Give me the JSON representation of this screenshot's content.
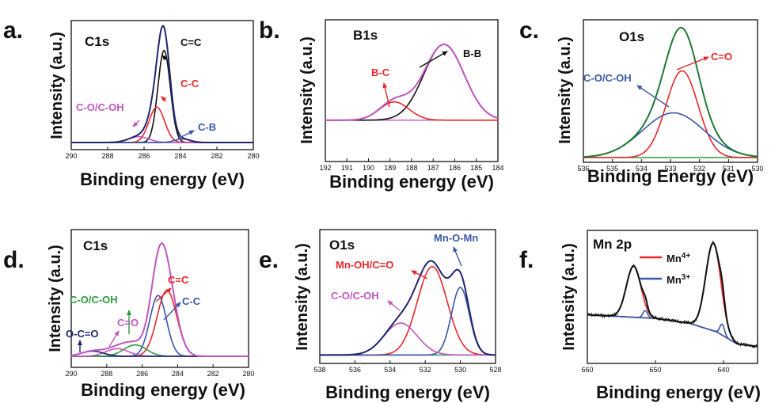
{
  "colors": {
    "black": "#111111",
    "red": "#e8272a",
    "blue": "#3a57a8",
    "magenta": "#c056c0",
    "green": "#2e9a3c",
    "navy": "#22246e",
    "darkgreen": "#1f7a33"
  },
  "chart_data": [
    {
      "id": "a",
      "type": "line",
      "letter": "a.",
      "title": "C1s",
      "xlabel": "Binding energy (eV)",
      "ylabel": "Intensity (a.u.)",
      "xlim": [
        290,
        280
      ],
      "ylim": [
        0,
        1.0
      ],
      "xticks": [
        "290",
        "288",
        "286",
        "284",
        "282",
        "280"
      ],
      "baseline": 0.02,
      "peaks": [
        {
          "name": "C=C",
          "color": "#111111",
          "center": 284.9,
          "height": 0.78,
          "fwhm": 0.8
        },
        {
          "name": "C-C",
          "color": "#e8272a",
          "center": 285.3,
          "height": 0.3,
          "fwhm": 1.0
        },
        {
          "name": "C-O/C-OH",
          "color": "#c056c0",
          "center": 286.3,
          "height": 0.05,
          "fwhm": 1.3
        },
        {
          "name": "C-B",
          "color": "#3a57a8",
          "center": 283.9,
          "height": 0.03,
          "fwhm": 1.0
        }
      ],
      "envelope_color": "#22246e",
      "annotations": [
        {
          "text": "C=C",
          "color": "#111111"
        },
        {
          "text": "C-C",
          "color": "#e8272a"
        },
        {
          "text": "C-O/C-OH",
          "color": "#c056c0"
        },
        {
          "text": "C-B",
          "color": "#3a57a8"
        }
      ]
    },
    {
      "id": "b",
      "type": "line",
      "letter": "b.",
      "title": "B1s",
      "xlabel": "Binding energy (eV)",
      "ylabel": "Intensity (a.u.)",
      "xlim": [
        192,
        184
      ],
      "ylim": [
        0,
        1.0
      ],
      "xticks": [
        "192",
        "191",
        "190",
        "189",
        "188",
        "187",
        "186",
        "185",
        "184"
      ],
      "baseline": 0.28,
      "peaks": [
        {
          "name": "B-B",
          "color": "#111111",
          "center": 186.5,
          "height": 0.58,
          "fwhm": 2.2
        },
        {
          "name": "B-C",
          "color": "#e8272a",
          "center": 188.8,
          "height": 0.14,
          "fwhm": 1.6
        }
      ],
      "envelope_color": "#c056c0",
      "annotations": [
        {
          "text": "B-B",
          "color": "#111111"
        },
        {
          "text": "B-C",
          "color": "#e8272a"
        }
      ]
    },
    {
      "id": "c",
      "type": "line",
      "letter": "c.",
      "title": "O1s",
      "xlabel": "Binding Energy (eV)",
      "ylabel": "Intensity (a.u.)",
      "xlim": [
        536,
        530
      ],
      "ylim": [
        0,
        1.0
      ],
      "xticks": [
        "536",
        "535",
        "534",
        "533",
        "532",
        "531",
        "530"
      ],
      "baseline": 0.0,
      "peaks": [
        {
          "name": "C=O",
          "color": "#e8272a",
          "center": 532.6,
          "height": 0.66,
          "fwhm": 1.3
        },
        {
          "name": "C-O/C-OH",
          "color": "#3a57a8",
          "center": 532.9,
          "height": 0.34,
          "fwhm": 2.5
        }
      ],
      "envelope_color": "#1f7a33",
      "annotations": [
        {
          "text": "C=O",
          "color": "#e8272a"
        },
        {
          "text": "C-O/C-OH",
          "color": "#3a57a8"
        }
      ]
    },
    {
      "id": "d",
      "type": "line",
      "letter": "d.",
      "title": "C1s",
      "xlabel": "Binding energy (eV)",
      "ylabel": "Intensity (a.u.)",
      "xlim": [
        290,
        280
      ],
      "ylim": [
        0,
        1.0
      ],
      "xticks": [
        "290",
        "288",
        "286",
        "284",
        "282",
        "280"
      ],
      "baseline": 0.05,
      "peaks": [
        {
          "name": "C=C",
          "color": "#e8272a",
          "center": 284.6,
          "height": 0.52,
          "fwhm": 1.3
        },
        {
          "name": "C-C",
          "color": "#3a57a8",
          "center": 285.1,
          "height": 0.48,
          "fwhm": 1.1
        },
        {
          "name": "C-O/C-OH",
          "color": "#2e9a3c",
          "center": 286.4,
          "height": 0.09,
          "fwhm": 1.5
        },
        {
          "name": "C=O",
          "color": "#c056c0",
          "center": 287.4,
          "height": 0.06,
          "fwhm": 1.5
        },
        {
          "name": "O-C=O",
          "color": "#22246e",
          "center": 288.8,
          "height": 0.04,
          "fwhm": 1.5
        }
      ],
      "envelope_color": "#c056c0",
      "annotations": [
        {
          "text": "C=C",
          "color": "#e8272a"
        },
        {
          "text": "C-C",
          "color": "#3a57a8"
        },
        {
          "text": "C-O/C-OH",
          "color": "#2e9a3c"
        },
        {
          "text": "C=O",
          "color": "#c056c0"
        },
        {
          "text": "O-C=O",
          "color": "#22246e"
        }
      ]
    },
    {
      "id": "e",
      "type": "line",
      "letter": "e.",
      "title": "O1s",
      "xlabel": "Binding energy (eV)",
      "ylabel": "Intensity (a.u.)",
      "xlim": [
        538,
        528
      ],
      "ylim": [
        0,
        1.0
      ],
      "xticks": [
        "538",
        "536",
        "534",
        "532",
        "530",
        "528"
      ],
      "baseline": 0.03,
      "peaks": [
        {
          "name": "Mn-OH/C=O",
          "color": "#e8272a",
          "center": 531.6,
          "height": 0.72,
          "fwhm": 2.0
        },
        {
          "name": "Mn-O-Mn",
          "color": "#3a57a8",
          "center": 530.0,
          "height": 0.55,
          "fwhm": 1.2
        },
        {
          "name": "C-O/C-OH",
          "color": "#c056c0",
          "center": 533.4,
          "height": 0.26,
          "fwhm": 2.2
        }
      ],
      "envelope_color": "#22246e",
      "annotations": [
        {
          "text": "Mn-O-Mn",
          "color": "#3a57a8"
        },
        {
          "text": "Mn-OH/C=O",
          "color": "#e8272a"
        },
        {
          "text": "C-O/C-OH",
          "color": "#c056c0"
        }
      ]
    },
    {
      "id": "f",
      "type": "line",
      "letter": "f.",
      "title": "Mn 2p",
      "xlabel": "Binding energy (eV)",
      "ylabel": "Intensity (a.u.)",
      "xlim": [
        660,
        635
      ],
      "ylim": [
        0,
        1.0
      ],
      "xticks": [
        "660",
        "650",
        "640"
      ],
      "background": [
        [
          660,
          0.36
        ],
        [
          650,
          0.33
        ],
        [
          645,
          0.29
        ],
        [
          641,
          0.22
        ],
        [
          638,
          0.12
        ],
        [
          635,
          0.1
        ]
      ],
      "peaks": [
        {
          "name": "Mn4+",
          "color": "#e8272a",
          "center": 653.2,
          "height": 0.42,
          "fwhm": 2.5
        },
        {
          "name": "Mn4+",
          "color": "#e8272a",
          "center": 641.5,
          "height": 0.72,
          "fwhm": 2.6
        },
        {
          "name": "Mn3+",
          "color": "#3a57a8",
          "center": 651.5,
          "height": 0.06,
          "fwhm": 0.8
        },
        {
          "name": "Mn3+",
          "color": "#3a57a8",
          "center": 640.2,
          "height": 0.09,
          "fwhm": 0.8
        }
      ],
      "envelope_color": "#111111",
      "legend": [
        {
          "label": "Mn",
          "sup": "4+",
          "color": "#e8272a"
        },
        {
          "label": "Mn",
          "sup": "3+",
          "color": "#3a57a8"
        }
      ],
      "legend_position": "top-center"
    }
  ]
}
